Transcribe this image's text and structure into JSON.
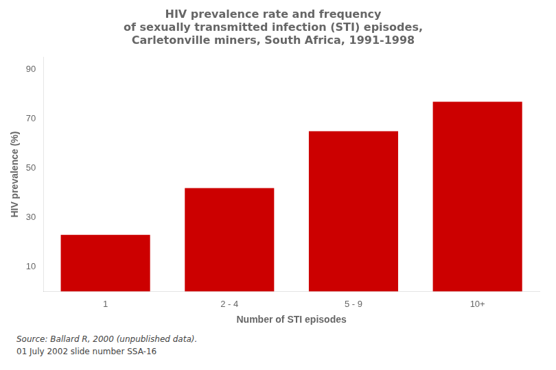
{
  "chart_data": {
    "type": "bar",
    "title": [
      "HIV prevalence rate and frequency",
      "of sexually transmitted infection (STI) episodes,",
      "Carletonville miners, South Africa, 1991-1998"
    ],
    "categories": [
      "1",
      "2 - 4",
      "5 - 9",
      "10+"
    ],
    "values": [
      23,
      42,
      65,
      77
    ],
    "color": "#CC0000",
    "xlabel": "Number of STI episodes",
    "ylabel": "HIV prevalence (%)",
    "ylim": [
      0,
      95
    ],
    "yticks": [
      10,
      30,
      50,
      70,
      90
    ],
    "grid": false,
    "annotations": [
      "Source: Ballard R, 2000 (unpublished data).",
      "01 July 2002 slide number SSA-16"
    ]
  }
}
